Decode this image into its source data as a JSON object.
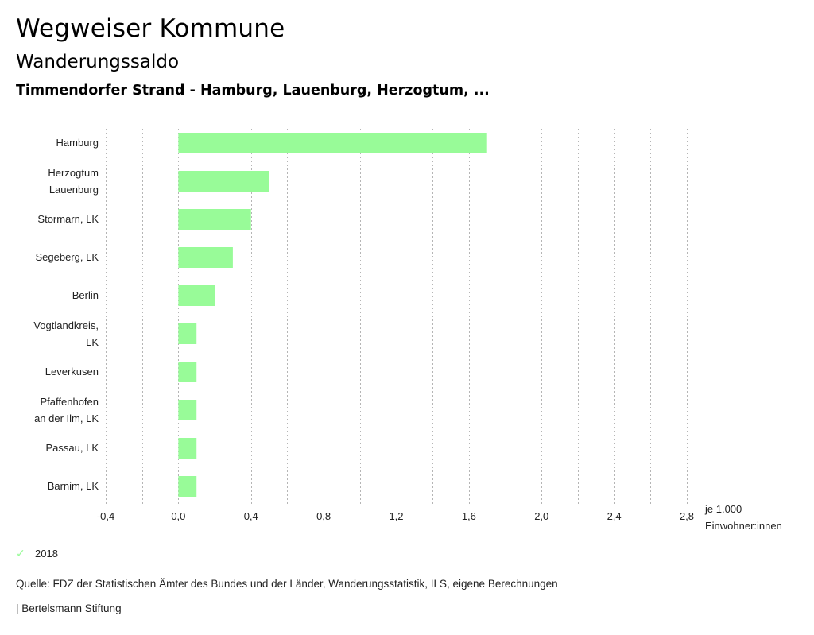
{
  "header": {
    "title": "Wegweiser Kommune",
    "subtitle": "Wanderungssaldo",
    "region": "Timmendorfer Strand - Hamburg, Lauenburg, Herzogtum, ..."
  },
  "chart_data": {
    "type": "bar",
    "orientation": "horizontal",
    "categories": [
      [
        "Hamburg"
      ],
      [
        "Herzogtum",
        "Lauenburg"
      ],
      [
        "Stormarn, LK"
      ],
      [
        "Segeberg, LK"
      ],
      [
        "Berlin"
      ],
      [
        "Vogtlandkreis,",
        "LK"
      ],
      [
        "Leverkusen"
      ],
      [
        "Pfaffenhofen",
        "an der Ilm, LK"
      ],
      [
        "Passau, LK"
      ],
      [
        "Barnim, LK"
      ]
    ],
    "series": [
      {
        "name": "2018",
        "color": "#98fb98",
        "values": [
          1.7,
          0.5,
          0.4,
          0.3,
          0.2,
          0.1,
          0.1,
          0.1,
          0.1,
          0.1
        ]
      }
    ],
    "xlim": [
      -0.4,
      2.8
    ],
    "x_ticks": [
      -0.4,
      0.0,
      0.4,
      0.8,
      1.2,
      1.6,
      2.0,
      2.4,
      2.8
    ],
    "x_tick_labels": [
      "-0,4",
      "0,0",
      "0,4",
      "0,8",
      "1,2",
      "1,6",
      "2,0",
      "2,4",
      "2,8"
    ],
    "gridlines": [
      -0.4,
      -0.2,
      0.0,
      0.2,
      0.4,
      0.6,
      0.8,
      1.0,
      1.2,
      1.4,
      1.6,
      1.8,
      2.0,
      2.2,
      2.4,
      2.6,
      2.8
    ],
    "grid": true,
    "xlabel_lines": [
      "je 1.000",
      "Einwohner:innen"
    ],
    "legend_position": "bottom-left"
  },
  "legend": {
    "items": [
      {
        "label": "2018",
        "icon": "check-icon"
      }
    ]
  },
  "footer": {
    "source": "Quelle: FDZ der Statistischen Ämter des Bundes und der Länder, Wanderungsstatistik, ILS, eigene Berechnungen",
    "brand": "| Bertelsmann Stiftung"
  }
}
